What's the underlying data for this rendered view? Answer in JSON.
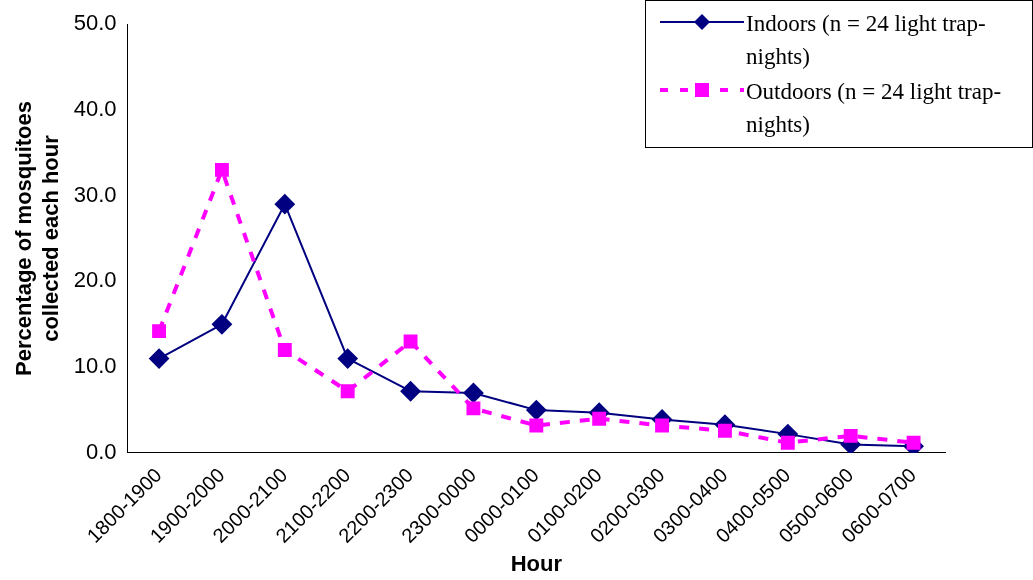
{
  "chart_data": {
    "type": "line",
    "xlabel": "Hour",
    "ylabel": "Percentage of mosquitoes collected each hour",
    "categories": [
      "1800-1900",
      "1900-2000",
      "2000-2100",
      "2100-2200",
      "2200-2300",
      "2300-0000",
      "0000-0100",
      "0100-0200",
      "0200-0300",
      "0300-0400",
      "0400-0500",
      "0500-0600",
      "0600-0700"
    ],
    "series": [
      {
        "name": "Indoors (n = 24 light trap-nights)",
        "color": "#000080",
        "marker": "diamond",
        "line_style": "solid",
        "values": [
          11,
          15,
          29,
          11,
          7.2,
          7,
          5,
          4.7,
          3.9,
          3.3,
          2.2,
          1,
          0.8
        ]
      },
      {
        "name": "Outdoors (n = 24 light trap-nights)",
        "color": "#ff00ff",
        "marker": "square",
        "line_style": "dashed",
        "values": [
          14.2,
          33,
          12,
          7.2,
          13,
          5.2,
          3.2,
          4,
          3.2,
          2.6,
          1.2,
          2,
          1.2
        ]
      }
    ],
    "ylim": [
      0,
      50
    ],
    "yticks": [
      {
        "value": 0,
        "label": "0.0"
      },
      {
        "value": 10,
        "label": "10.0"
      },
      {
        "value": 20,
        "label": "20.0"
      },
      {
        "value": 30,
        "label": "30.0"
      },
      {
        "value": 40,
        "label": "40.0"
      },
      {
        "value": 50,
        "label": "50.0"
      }
    ],
    "grid": false,
    "legend": "top right"
  }
}
